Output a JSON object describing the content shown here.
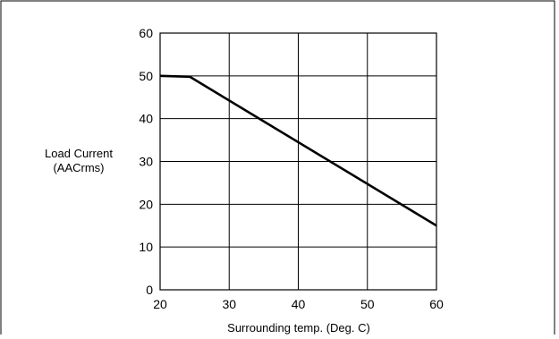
{
  "chart_data": {
    "type": "line",
    "title": "",
    "ylabel_lines": [
      "Load Current",
      "(AACrms)"
    ],
    "xlabel": "Surrounding temp. (Deg. C)",
    "xlim": [
      20,
      60
    ],
    "ylim": [
      0,
      60
    ],
    "x_ticks": [
      20,
      30,
      40,
      50,
      60
    ],
    "y_ticks": [
      0,
      10,
      20,
      30,
      40,
      50,
      60
    ],
    "grid": true,
    "legend": "none",
    "series": [
      {
        "color": "#000000",
        "points": [
          {
            "x": 20,
            "y": 50
          },
          {
            "x": 24.3,
            "y": 49.8
          },
          {
            "x": 60,
            "y": 15
          }
        ]
      }
    ]
  }
}
